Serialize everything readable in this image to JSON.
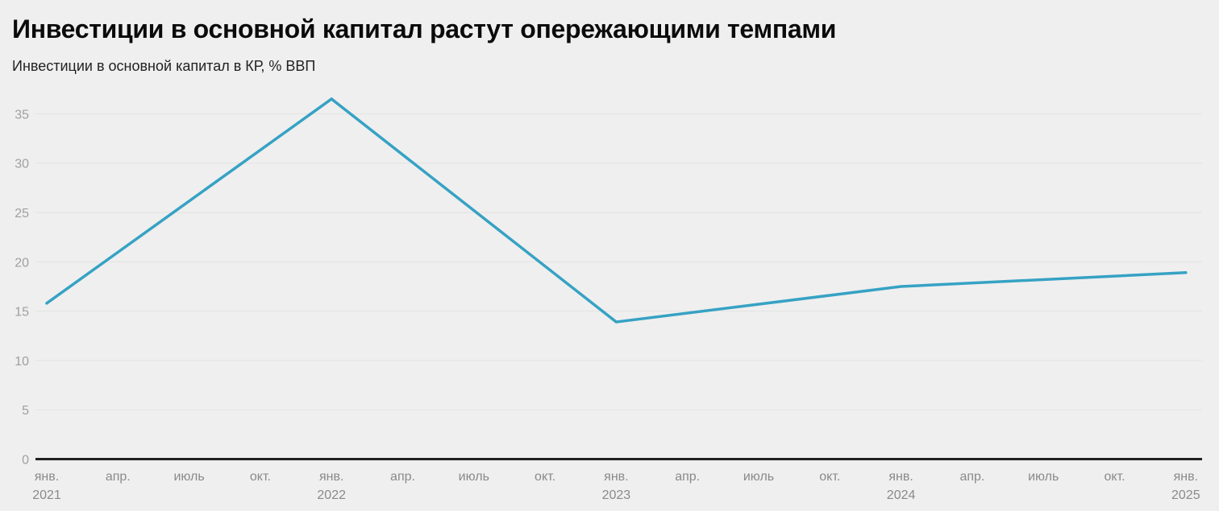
{
  "chart_data": {
    "type": "line",
    "title": "Инвестиции в основной капитал растут опережающими темпами",
    "subtitle": "Инвестиции в основной капитал в КР, % ВВП",
    "xlabel": "",
    "ylabel": "% ВВП",
    "ylim": [
      0,
      37
    ],
    "yticks": [
      0,
      5,
      10,
      15,
      20,
      25,
      30,
      35
    ],
    "grid": true,
    "legend": false,
    "x_ticks": [
      {
        "month": "янв.",
        "year": "2021"
      },
      {
        "month": "апр."
      },
      {
        "month": "июль"
      },
      {
        "month": "окт."
      },
      {
        "month": "янв.",
        "year": "2022"
      },
      {
        "month": "апр."
      },
      {
        "month": "июль"
      },
      {
        "month": "окт."
      },
      {
        "month": "янв.",
        "year": "2023"
      },
      {
        "month": "апр."
      },
      {
        "month": "июль"
      },
      {
        "month": "окт."
      },
      {
        "month": "янв.",
        "year": "2024"
      },
      {
        "month": "апр."
      },
      {
        "month": "июль"
      },
      {
        "month": "окт."
      },
      {
        "month": "янв.",
        "year": "2025"
      }
    ],
    "series": [
      {
        "name": "Инвестиции в основной капитал в КР, % ВВП",
        "points": [
          {
            "label": "янв. 2021",
            "tick_index": 0,
            "value": 15.8
          },
          {
            "label": "янв. 2022",
            "tick_index": 4,
            "value": 36.5
          },
          {
            "label": "янв. 2023",
            "tick_index": 8,
            "value": 13.9
          },
          {
            "label": "янв. 2024",
            "tick_index": 12,
            "value": 17.5
          },
          {
            "label": "янв. 2025",
            "tick_index": 16,
            "value": 18.9
          }
        ]
      }
    ]
  },
  "colors": {
    "background": "#efefef",
    "title": "#0b0b0b",
    "subtitle": "#222222",
    "y_tick_label": "#a0a0a0",
    "x_tick_label": "#8a8a8a",
    "gridline": "#e2e2e2",
    "axis_baseline": "#202020",
    "line": "#36a2c4"
  }
}
